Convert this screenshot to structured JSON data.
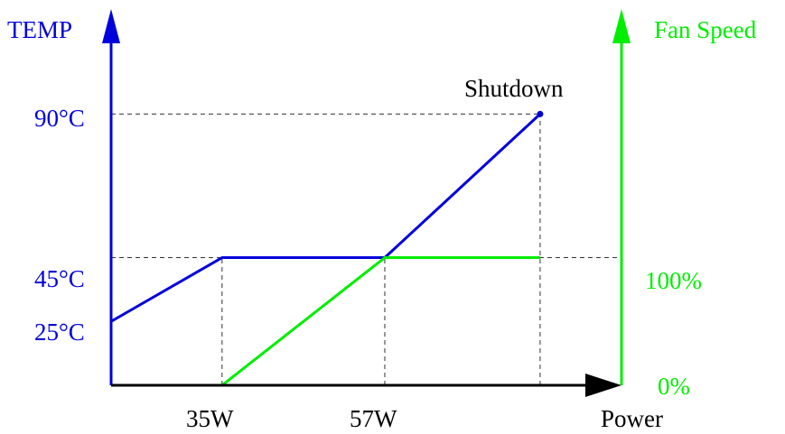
{
  "chart_data": {
    "type": "line",
    "axes": {
      "x_label": "Power",
      "y_left_label": "TEMP",
      "y_right_label": "Fan Speed"
    },
    "x_ticks": [
      {
        "value": 35,
        "label": "35W"
      },
      {
        "value": 57,
        "label": "57W"
      }
    ],
    "y_left_ticks": [
      {
        "value": 25,
        "label": "25°C"
      },
      {
        "value": 45,
        "label": "45°C"
      },
      {
        "value": 90,
        "label": "90°C"
      }
    ],
    "y_right_ticks": [
      {
        "value": 0,
        "label": "0%"
      },
      {
        "value": 100,
        "label": "100%"
      }
    ],
    "xlim": [
      20,
      89
    ],
    "ylim_left": [
      5,
      113
    ],
    "ylim_right": [
      0,
      100
    ],
    "series": [
      {
        "axis": "left",
        "color": "#0000dd",
        "points": [
          [
            20,
            25
          ],
          [
            35,
            45
          ],
          [
            57,
            45
          ],
          [
            78,
            90
          ]
        ]
      },
      {
        "axis": "right",
        "color": "#00ee00",
        "points": [
          [
            35,
            0
          ],
          [
            57,
            100
          ],
          [
            78,
            100
          ]
        ]
      }
    ],
    "annotations": [
      {
        "text": "Shutdown",
        "x": 78,
        "y": 90
      }
    ],
    "reference_lines": [
      {
        "from": [
          20,
          90
        ],
        "to": [
          78,
          90
        ]
      },
      {
        "from": [
          20,
          45
        ],
        "to": [
          35,
          45
        ]
      },
      {
        "from": [
          57,
          45
        ],
        "to": [
          89,
          45
        ]
      },
      {
        "from": [
          35,
          5
        ],
        "to": [
          35,
          45
        ]
      },
      {
        "from": [
          57,
          5
        ],
        "to": [
          57,
          45
        ]
      },
      {
        "from": [
          78,
          5
        ],
        "to": [
          78,
          90
        ]
      }
    ],
    "colors": {
      "temp_axis": "#0000dd",
      "fan_axis": "#00ee00",
      "x_axis": "#000000"
    }
  }
}
